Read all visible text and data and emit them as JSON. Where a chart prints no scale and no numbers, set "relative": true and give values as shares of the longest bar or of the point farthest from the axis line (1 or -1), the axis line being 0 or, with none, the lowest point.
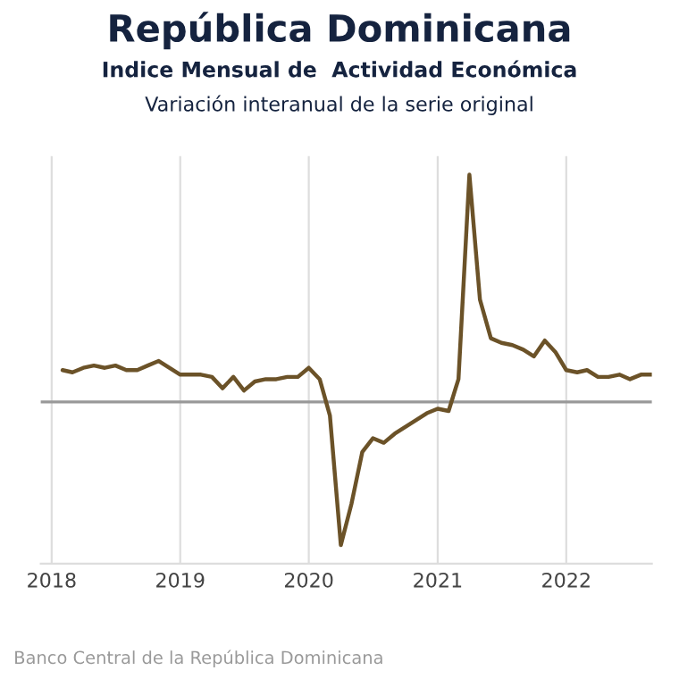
{
  "chart_data": {
    "type": "line",
    "title": "República Dominicana",
    "subtitle": "Indice Mensual de  Actividad Económica",
    "annotations": [
      "Variación interanual de la serie original",
      "Banco Central de la República Dominicana"
    ],
    "relative": true,
    "grid": "x",
    "legend": false,
    "marker": "none",
    "line_style": "solid",
    "xlim": [
      "2017-12",
      "2022-09"
    ],
    "xticks": [
      {
        "value": "2018-01",
        "label": "2018"
      },
      {
        "value": "2019-01",
        "label": "2019"
      },
      {
        "value": "2020-01",
        "label": "2020"
      },
      {
        "value": "2021-01",
        "label": "2021"
      },
      {
        "value": "2022-01",
        "label": "2022"
      }
    ],
    "x": [
      "2018-02",
      "2018-03",
      "2018-04",
      "2018-05",
      "2018-06",
      "2018-07",
      "2018-08",
      "2018-09",
      "2018-10",
      "2018-11",
      "2018-12",
      "2019-01",
      "2019-02",
      "2019-03",
      "2019-04",
      "2019-05",
      "2019-06",
      "2019-07",
      "2019-08",
      "2019-09",
      "2019-10",
      "2019-11",
      "2019-12",
      "2020-01",
      "2020-02",
      "2020-03",
      "2020-04",
      "2020-05",
      "2020-06",
      "2020-07",
      "2020-08",
      "2020-09",
      "2020-10",
      "2020-11",
      "2020-12",
      "2021-01",
      "2021-02",
      "2021-03",
      "2021-04",
      "2021-05",
      "2021-06",
      "2021-07",
      "2021-08",
      "2021-09",
      "2021-10",
      "2021-11",
      "2021-12",
      "2022-01",
      "2022-02",
      "2022-03",
      "2022-04",
      "2022-05",
      "2022-06",
      "2022-07",
      "2022-08",
      "2022-09"
    ],
    "series": [
      {
        "color": "#6b5228",
        "values": [
          0.14,
          0.13,
          0.15,
          0.16,
          0.15,
          0.16,
          0.14,
          0.14,
          0.16,
          0.18,
          0.15,
          0.12,
          0.12,
          0.12,
          0.11,
          0.06,
          0.11,
          0.05,
          0.09,
          0.1,
          0.1,
          0.11,
          0.11,
          0.15,
          0.1,
          -0.06,
          -0.63,
          -0.45,
          -0.22,
          -0.16,
          -0.18,
          -0.14,
          -0.11,
          -0.08,
          -0.05,
          -0.03,
          -0.04,
          0.1,
          1,
          0.45,
          0.28,
          0.26,
          0.25,
          0.23,
          0.2,
          0.27,
          0.22,
          0.14,
          0.13,
          0.14,
          0.11,
          0.11,
          0.12,
          0.1,
          0.12,
          0.12
        ]
      }
    ]
  }
}
